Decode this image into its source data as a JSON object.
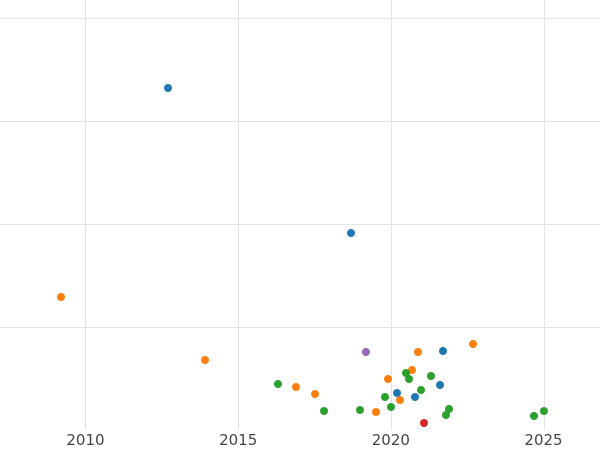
{
  "chart_data": {
    "type": "scatter",
    "title": "",
    "xlabel": "",
    "ylabel": "",
    "grid": true,
    "legend": false,
    "xlim": [
      2007.2,
      2026.85
    ],
    "ylim": [
      0,
      4.17
    ],
    "x_ticks": [
      2010,
      2015,
      2020,
      2025
    ],
    "y_gridlines": [
      1,
      2,
      3,
      4
    ],
    "marker_size_px": 8,
    "gridline_color": "#e3e3e3",
    "tick_label_color": "#444444",
    "series": [
      {
        "name": "series-blue",
        "color": "#1f77b4",
        "points": [
          [
            2012.7,
            3.32
          ],
          [
            2018.7,
            1.91
          ],
          [
            2020.2,
            0.36
          ],
          [
            2020.8,
            0.32
          ],
          [
            2021.6,
            0.44
          ],
          [
            2021.7,
            0.77
          ]
        ]
      },
      {
        "name": "series-orange",
        "color": "#ff7f0e",
        "points": [
          [
            2009.2,
            1.29
          ],
          [
            2013.9,
            0.68
          ],
          [
            2016.9,
            0.42
          ],
          [
            2017.5,
            0.35
          ],
          [
            2019.5,
            0.17
          ],
          [
            2019.9,
            0.49
          ],
          [
            2020.3,
            0.29
          ],
          [
            2020.7,
            0.58
          ],
          [
            2020.9,
            0.76
          ],
          [
            2022.7,
            0.83
          ]
        ]
      },
      {
        "name": "series-green",
        "color": "#2ca02c",
        "points": [
          [
            2016.3,
            0.45
          ],
          [
            2017.8,
            0.18
          ],
          [
            2019.0,
            0.19
          ],
          [
            2019.8,
            0.32
          ],
          [
            2020.0,
            0.22
          ],
          [
            2020.5,
            0.55
          ],
          [
            2020.6,
            0.49
          ],
          [
            2021.0,
            0.39
          ],
          [
            2021.3,
            0.52
          ],
          [
            2021.8,
            0.15
          ],
          [
            2021.9,
            0.2
          ],
          [
            2024.7,
            0.14
          ],
          [
            2025.0,
            0.18
          ]
        ]
      },
      {
        "name": "series-red",
        "color": "#d62728",
        "points": [
          [
            2021.1,
            0.07
          ]
        ]
      },
      {
        "name": "series-purple",
        "color": "#9467bd",
        "points": [
          [
            2019.2,
            0.76
          ]
        ]
      }
    ]
  }
}
